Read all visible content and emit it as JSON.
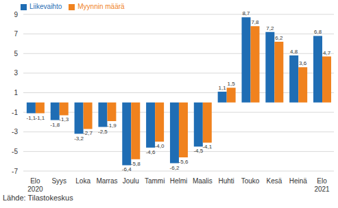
{
  "chart_data": {
    "type": "bar",
    "categories": [
      "Elo\n2020",
      "Syys",
      "Loka",
      "Marras",
      "Joulu",
      "Tammi",
      "Helmi",
      "Maalis",
      "Huhti",
      "Touko",
      "Kesä",
      "Heinä",
      "Elo\n2021"
    ],
    "series": [
      {
        "name": "Liikevaihto",
        "color": "#1f6db4",
        "values": [
          -1.1,
          -1.8,
          -3.2,
          -2.5,
          -6.4,
          -4.6,
          -6.2,
          -4.5,
          1.1,
          8.7,
          7.2,
          4.8,
          6.8
        ],
        "value_labels": [
          "-1,1",
          "-1,8",
          "-3,2",
          "-2,5",
          "-6,4",
          "-4,6",
          "-6,2",
          "-4,5",
          "1,1",
          "8,7",
          "7,2",
          "4,8",
          "6,8"
        ]
      },
      {
        "name": "Myynnin määrä",
        "color": "#f0821e",
        "values": [
          -1.1,
          -1.3,
          -2.7,
          -1.9,
          -5.8,
          -4.0,
          -5.6,
          -4.1,
          1.5,
          7.8,
          6.2,
          3.6,
          4.7
        ],
        "value_labels": [
          "-1,1",
          "-1,3",
          "-2,7",
          "-1,9",
          "-5,8",
          "-4,0",
          "-5,6",
          "-4,1",
          "1,5",
          "7,8",
          "6,2",
          "3,6",
          "4,7"
        ]
      }
    ],
    "ylim": [
      -7,
      9
    ],
    "yticks": [
      -7,
      -5,
      -3,
      -1,
      1,
      3,
      5,
      7,
      9
    ],
    "grid": true,
    "legend": "top left",
    "data_labels": true,
    "annotation": "Lähde: Tilastokeskus"
  }
}
